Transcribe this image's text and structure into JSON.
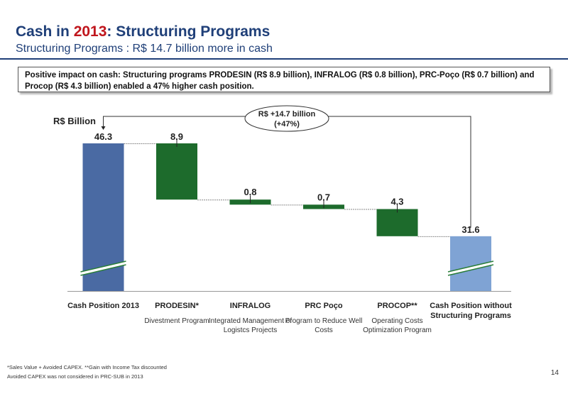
{
  "header": {
    "title_pre": "Cash in ",
    "title_year": "2013",
    "title_post": ": Structuring Programs",
    "subtitle": "Structuring Programs : R$ 14.7 billion more in cash"
  },
  "callout_text": "Positive impact on cash: Structuring programs PRODESIN (R$ 8.9 billion), INFRALOG (R$ 0.8 billion), PRC-Poço (R$ 0.7 billion) and Procop (R$ 4.3 billion) enabled a 47% higher cash position.",
  "unit_label": "R$ Billion",
  "delta_bubble": {
    "line1": "R$ +14.7 billion",
    "line2": "(+47%)"
  },
  "chart_data": {
    "type": "bar",
    "subtype": "waterfall",
    "categories": [
      "Cash Position 2013",
      "PRODESIN*",
      "INFRALOG",
      "PRC Poço",
      "PROCOP**",
      "Cash Position without Structuring Programs"
    ],
    "descriptions": [
      "",
      "Divestment Program",
      "Integrated Management of Logistcs Projects",
      "Program to Reduce Well Costs",
      "Operating Costs Optimization Program",
      ""
    ],
    "values": [
      46.3,
      8.9,
      0.8,
      0.7,
      4.3,
      31.6
    ],
    "value_labels": [
      "46.3",
      "8.9",
      "0.8",
      "0.7",
      "4.3",
      "31.6"
    ],
    "kinds": [
      "total",
      "decrease",
      "decrease",
      "decrease",
      "decrease",
      "total"
    ],
    "ylabel": "R$ Billion",
    "axis_break": true,
    "colors": {
      "total": "#4a6aa3",
      "total_light": "#7fa3d4",
      "step": "#1d6b2c"
    }
  },
  "footnotes": [
    "*Sales Value + Avoided CAPEX. **Gain with Income Tax discounted",
    "Avoided CAPEX was not considered in PRC-SUB in 2013"
  ],
  "page_number": "14"
}
